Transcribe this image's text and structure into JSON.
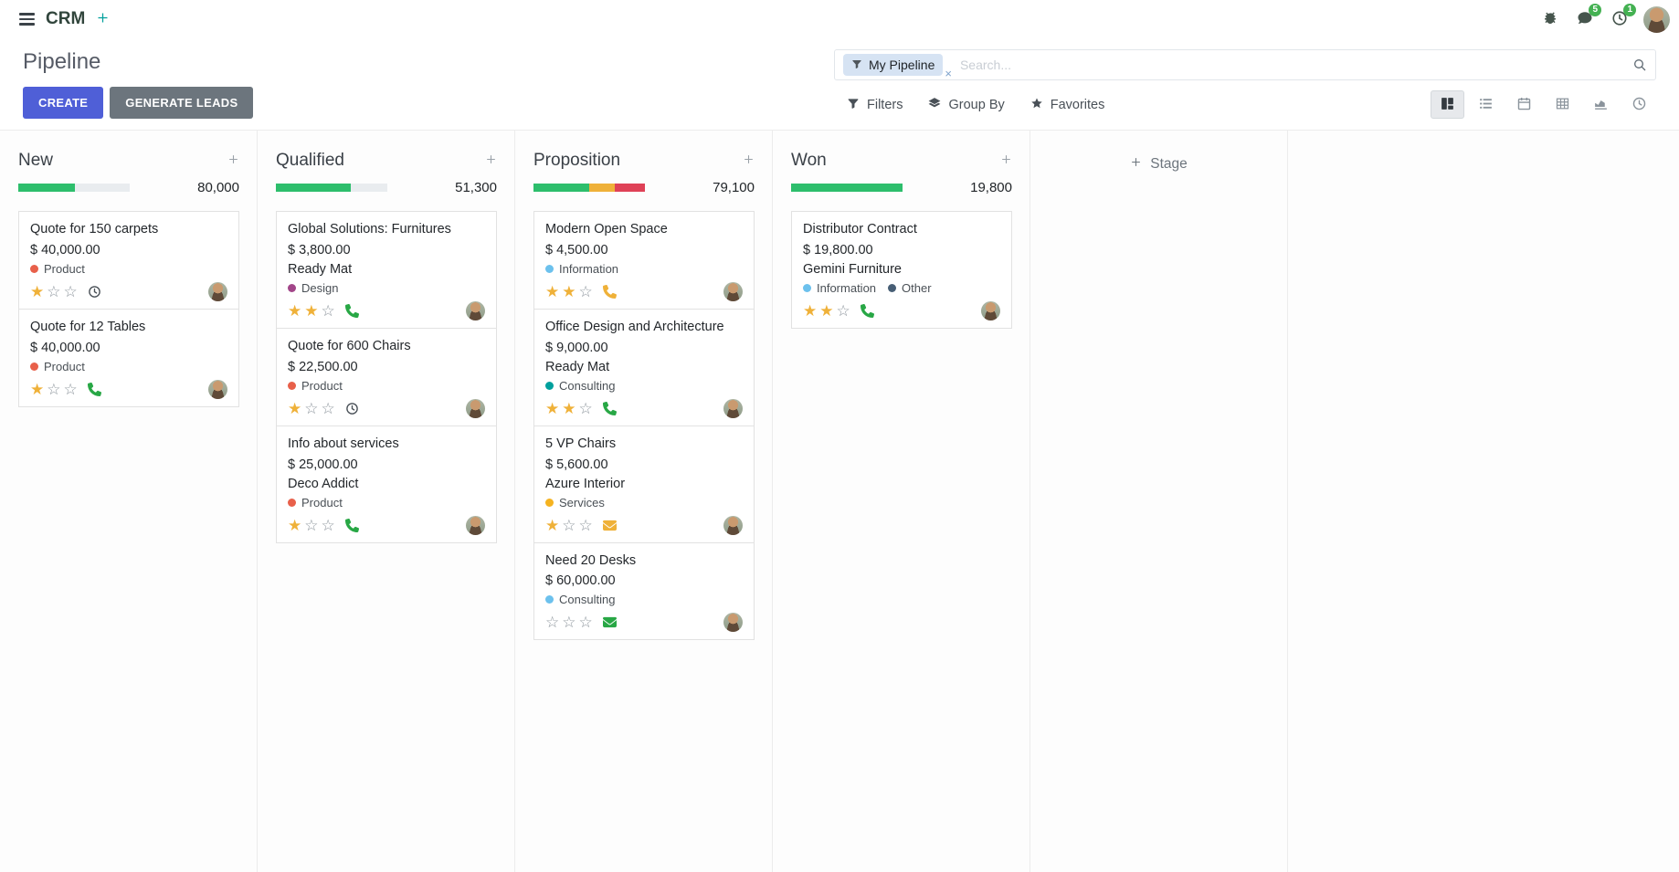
{
  "colors": {
    "primary": "#4f5fd7",
    "secondary": "#6c757d",
    "teal": "#00a09d",
    "badge": "#44b152",
    "star": "#efb139"
  },
  "navbar": {
    "app_name": "CRM",
    "messages_badge": "5",
    "activities_badge": "1"
  },
  "control_panel": {
    "title": "Pipeline",
    "create_label": "CREATE",
    "generate_leads_label": "GENERATE LEADS",
    "search": {
      "facet_label": "My Pipeline",
      "placeholder": "Search..."
    },
    "filters_label": "Filters",
    "group_by_label": "Group By",
    "favorites_label": "Favorites",
    "views": [
      {
        "name": "kanban",
        "active": true
      },
      {
        "name": "list",
        "active": false
      },
      {
        "name": "calendar",
        "active": false
      },
      {
        "name": "pivot",
        "active": false
      },
      {
        "name": "graph",
        "active": false
      },
      {
        "name": "activity",
        "active": false
      }
    ]
  },
  "kanban": {
    "add_stage_label": "Stage",
    "columns": [
      {
        "name": "New",
        "count": "80,000",
        "progress": [
          {
            "status": "success",
            "color": "#2dbe6c",
            "pct": 51
          },
          {
            "status": "muted",
            "color": "#e9ecef",
            "pct": 49
          }
        ],
        "cards": [
          {
            "title": "Quote for 150 carpets",
            "amount": "$ 40,000.00",
            "company": null,
            "tags": [
              {
                "label": "Product",
                "color": "#e8604a"
              }
            ],
            "stars": 1,
            "activity": {
              "icon": "clock",
              "color": "#495057"
            }
          },
          {
            "title": "Quote for 12 Tables",
            "amount": "$ 40,000.00",
            "company": null,
            "tags": [
              {
                "label": "Product",
                "color": "#e8604a"
              }
            ],
            "stars": 1,
            "activity": {
              "icon": "phone",
              "color": "#28a745"
            }
          }
        ]
      },
      {
        "name": "Qualified",
        "count": "51,300",
        "progress": [
          {
            "status": "success",
            "color": "#2dbe6c",
            "pct": 67
          },
          {
            "status": "muted",
            "color": "#e9ecef",
            "pct": 33
          }
        ],
        "cards": [
          {
            "title": "Global Solutions: Furnitures",
            "amount": "$ 3,800.00",
            "company": "Ready Mat",
            "tags": [
              {
                "label": "Design",
                "color": "#a24689"
              }
            ],
            "stars": 2,
            "activity": {
              "icon": "phone",
              "color": "#28a745"
            }
          },
          {
            "title": "Quote for 600 Chairs",
            "amount": "$ 22,500.00",
            "company": null,
            "tags": [
              {
                "label": "Product",
                "color": "#e8604a"
              }
            ],
            "stars": 1,
            "activity": {
              "icon": "clock",
              "color": "#495057"
            }
          },
          {
            "title": "Info about services",
            "amount": "$ 25,000.00",
            "company": "Deco Addict",
            "tags": [
              {
                "label": "Product",
                "color": "#e8604a"
              }
            ],
            "stars": 1,
            "activity": {
              "icon": "phone",
              "color": "#28a745"
            }
          }
        ]
      },
      {
        "name": "Proposition",
        "count": "79,100",
        "progress": [
          {
            "status": "success",
            "color": "#2dbe6c",
            "pct": 50
          },
          {
            "status": "warning",
            "color": "#efb139",
            "pct": 23
          },
          {
            "status": "danger",
            "color": "#df4157",
            "pct": 27
          }
        ],
        "cards": [
          {
            "title": "Modern Open Space",
            "amount": "$ 4,500.00",
            "company": null,
            "tags": [
              {
                "label": "Information",
                "color": "#6cc1ed"
              }
            ],
            "stars": 2,
            "activity": {
              "icon": "phone",
              "color": "#efb139"
            }
          },
          {
            "title": "Office Design and Architecture",
            "amount": "$ 9,000.00",
            "company": "Ready Mat",
            "tags": [
              {
                "label": "Consulting",
                "color": "#00a09d"
              }
            ],
            "stars": 2,
            "activity": {
              "icon": "phone",
              "color": "#28a745"
            }
          },
          {
            "title": "5 VP Chairs",
            "amount": "$ 5,600.00",
            "company": "Azure Interior",
            "tags": [
              {
                "label": "Services",
                "color": "#f5b320"
              }
            ],
            "stars": 1,
            "activity": {
              "icon": "envelope",
              "color": "#efb139"
            }
          },
          {
            "title": "Need 20 Desks",
            "amount": "$ 60,000.00",
            "company": null,
            "tags": [
              {
                "label": "Consulting",
                "color": "#6cc1ed"
              }
            ],
            "stars": 0,
            "activity": {
              "icon": "envelope",
              "color": "#28a745"
            }
          }
        ]
      },
      {
        "name": "Won",
        "count": "19,800",
        "progress": [
          {
            "status": "success",
            "color": "#2dbe6c",
            "pct": 100
          }
        ],
        "cards": [
          {
            "title": "Distributor Contract",
            "amount": "$ 19,800.00",
            "company": "Gemini Furniture",
            "tags": [
              {
                "label": "Information",
                "color": "#6cc1ed"
              },
              {
                "label": "Other",
                "color": "#475e75"
              }
            ],
            "stars": 2,
            "activity": {
              "icon": "phone",
              "color": "#28a745"
            }
          }
        ]
      }
    ]
  }
}
